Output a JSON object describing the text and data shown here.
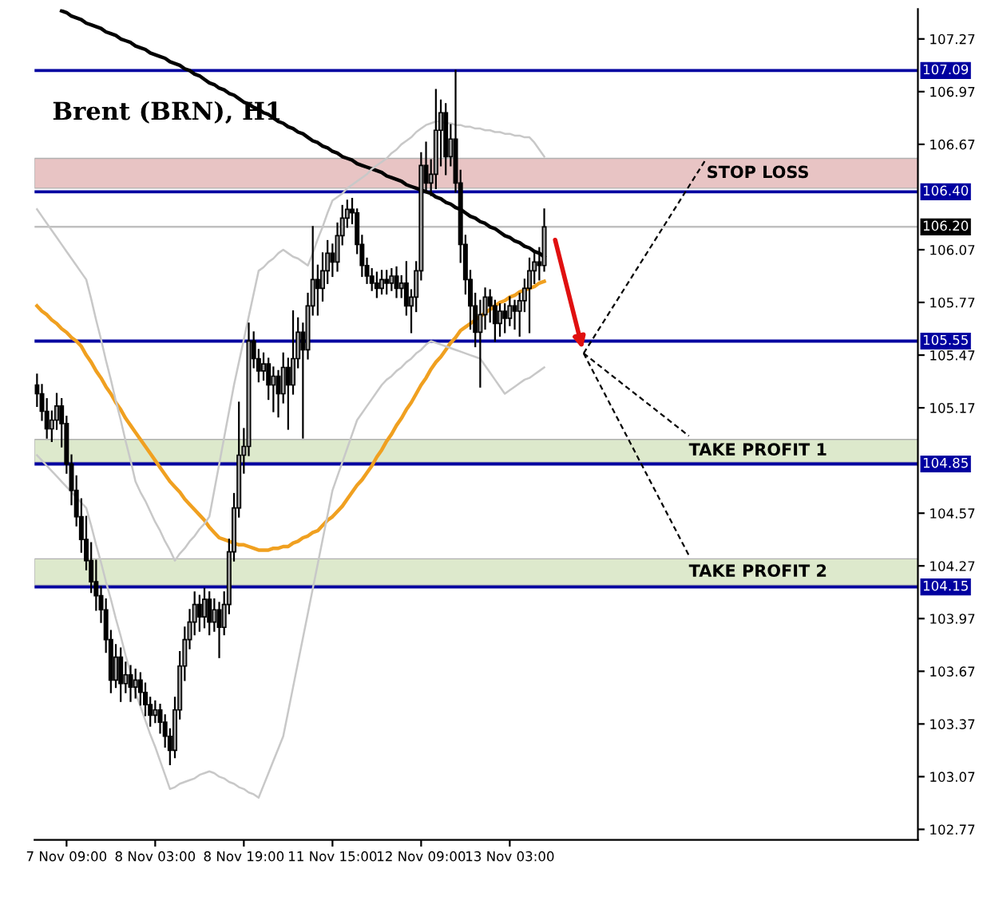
{
  "chart_data": {
    "type": "candlestick",
    "title": "Brent (BRN), H1",
    "categories": [
      null,
      null,
      null,
      null,
      null,
      null,
      "7 Nov 09:00",
      null,
      null,
      null,
      null,
      null,
      null,
      null,
      null,
      null,
      null,
      null,
      null,
      null,
      null,
      null,
      null,
      null,
      "8 Nov 03:00",
      null,
      null,
      null,
      null,
      null,
      null,
      null,
      null,
      null,
      null,
      null,
      null,
      null,
      null,
      null,
      null,
      null,
      "8 Nov 19:00",
      null,
      null,
      null,
      null,
      null,
      null,
      null,
      null,
      null,
      null,
      null,
      null,
      null,
      null,
      null,
      null,
      null,
      "11 Nov 15:00",
      null,
      null,
      null,
      null,
      null,
      null,
      null,
      null,
      null,
      null,
      null,
      null,
      null,
      null,
      null,
      null,
      null,
      "12 Nov 09:00",
      null,
      null,
      null,
      null,
      null,
      null,
      null,
      null,
      null,
      null,
      null,
      null,
      null,
      null,
      null,
      null,
      null,
      "13 Nov 03:00",
      null,
      null,
      null,
      null,
      null,
      null,
      null
    ],
    "ohlc": [
      [
        105.3,
        105.36,
        105.18,
        105.25
      ],
      [
        105.25,
        105.3,
        105.1,
        105.15
      ],
      [
        105.15,
        105.22,
        105.0,
        105.05
      ],
      [
        105.05,
        105.15,
        104.98,
        105.1
      ],
      [
        105.1,
        105.25,
        105.05,
        105.18
      ],
      [
        105.18,
        105.22,
        104.95,
        105.08
      ],
      [
        105.08,
        105.12,
        104.8,
        104.85
      ],
      [
        104.85,
        104.9,
        104.62,
        104.7
      ],
      [
        104.7,
        104.78,
        104.5,
        104.55
      ],
      [
        104.55,
        104.65,
        104.35,
        104.42
      ],
      [
        104.42,
        104.55,
        104.25,
        104.3
      ],
      [
        104.3,
        104.4,
        104.12,
        104.18
      ],
      [
        104.18,
        104.3,
        104.02,
        104.1
      ],
      [
        104.1,
        104.15,
        103.95,
        104.02
      ],
      [
        104.02,
        104.08,
        103.78,
        103.85
      ],
      [
        103.85,
        103.9,
        103.55,
        103.62
      ],
      [
        103.62,
        103.82,
        103.58,
        103.75
      ],
      [
        103.75,
        103.8,
        103.5,
        103.6
      ],
      [
        103.6,
        103.72,
        103.55,
        103.65
      ],
      [
        103.65,
        103.7,
        103.5,
        103.58
      ],
      [
        103.58,
        103.68,
        103.52,
        103.62
      ],
      [
        103.62,
        103.66,
        103.48,
        103.55
      ],
      [
        103.55,
        103.6,
        103.42,
        103.48
      ],
      [
        103.48,
        103.52,
        103.36,
        103.42
      ],
      [
        103.42,
        103.5,
        103.38,
        103.45
      ],
      [
        103.45,
        103.48,
        103.32,
        103.38
      ],
      [
        103.38,
        103.42,
        103.24,
        103.3
      ],
      [
        103.3,
        103.34,
        103.14,
        103.22
      ],
      [
        103.22,
        103.52,
        103.18,
        103.45
      ],
      [
        103.45,
        103.78,
        103.4,
        103.7
      ],
      [
        103.7,
        103.92,
        103.62,
        103.85
      ],
      [
        103.85,
        104.02,
        103.8,
        103.95
      ],
      [
        103.95,
        104.12,
        103.88,
        104.05
      ],
      [
        104.05,
        104.1,
        103.9,
        103.98
      ],
      [
        103.98,
        104.14,
        103.92,
        104.08
      ],
      [
        104.08,
        104.12,
        103.88,
        103.95
      ],
      [
        103.95,
        104.08,
        103.9,
        104.02
      ],
      [
        104.02,
        104.06,
        103.75,
        103.92
      ],
      [
        103.92,
        104.12,
        103.88,
        104.05
      ],
      [
        104.05,
        104.42,
        104.0,
        104.35
      ],
      [
        104.35,
        104.68,
        104.3,
        104.6
      ],
      [
        104.6,
        105.2,
        104.55,
        104.9
      ],
      [
        104.9,
        105.05,
        104.8,
        104.95
      ],
      [
        104.95,
        105.65,
        104.9,
        105.55
      ],
      [
        105.55,
        105.6,
        105.4,
        105.45
      ],
      [
        105.45,
        105.5,
        105.32,
        105.38
      ],
      [
        105.38,
        105.48,
        105.33,
        105.42
      ],
      [
        105.42,
        105.45,
        105.22,
        105.3
      ],
      [
        105.3,
        105.4,
        105.15,
        105.35
      ],
      [
        105.35,
        105.38,
        105.12,
        105.25
      ],
      [
        105.25,
        105.48,
        105.2,
        105.4
      ],
      [
        105.4,
        105.45,
        105.05,
        105.3
      ],
      [
        105.3,
        105.72,
        105.25,
        105.45
      ],
      [
        105.45,
        105.68,
        105.4,
        105.6
      ],
      [
        105.6,
        105.65,
        105.0,
        105.5
      ],
      [
        105.5,
        105.82,
        105.45,
        105.75
      ],
      [
        105.75,
        106.2,
        105.7,
        105.9
      ],
      [
        105.9,
        105.98,
        105.7,
        105.85
      ],
      [
        105.85,
        106.05,
        105.78,
        105.95
      ],
      [
        105.95,
        106.12,
        105.88,
        106.05
      ],
      [
        106.05,
        106.1,
        105.92,
        106.0
      ],
      [
        106.0,
        106.22,
        105.95,
        106.15
      ],
      [
        106.15,
        106.32,
        106.1,
        106.25
      ],
      [
        106.25,
        106.35,
        106.2,
        106.3
      ],
      [
        106.3,
        106.36,
        106.22,
        106.28
      ],
      [
        106.28,
        106.3,
        106.05,
        106.1
      ],
      [
        106.1,
        106.15,
        105.92,
        105.98
      ],
      [
        105.98,
        106.02,
        105.88,
        105.92
      ],
      [
        105.92,
        105.96,
        105.84,
        105.88
      ],
      [
        105.88,
        105.94,
        105.8,
        105.85
      ],
      [
        105.85,
        105.95,
        105.82,
        105.9
      ],
      [
        105.9,
        105.95,
        105.82,
        105.88
      ],
      [
        105.88,
        105.96,
        105.84,
        105.92
      ],
      [
        105.92,
        105.97,
        105.8,
        105.85
      ],
      [
        105.85,
        105.92,
        105.8,
        105.88
      ],
      [
        105.88,
        106.0,
        105.7,
        105.75
      ],
      [
        105.75,
        105.84,
        105.6,
        105.8
      ],
      [
        105.8,
        106.0,
        105.72,
        105.95
      ],
      [
        105.95,
        106.62,
        105.9,
        106.55
      ],
      [
        106.55,
        106.68,
        106.4,
        106.45
      ],
      [
        106.45,
        106.58,
        106.38,
        106.5
      ],
      [
        106.5,
        106.98,
        106.42,
        106.75
      ],
      [
        106.75,
        106.92,
        106.55,
        106.85
      ],
      [
        106.85,
        106.9,
        106.5,
        106.6
      ],
      [
        106.6,
        106.78,
        106.55,
        106.7
      ],
      [
        106.7,
        107.09,
        106.4,
        106.45
      ],
      [
        106.45,
        106.52,
        106.0,
        106.1
      ],
      [
        106.1,
        106.15,
        105.82,
        105.9
      ],
      [
        105.9,
        105.95,
        105.62,
        105.75
      ],
      [
        105.75,
        105.82,
        105.52,
        105.6
      ],
      [
        105.6,
        105.78,
        105.29,
        105.7
      ],
      [
        105.7,
        105.85,
        105.62,
        105.8
      ],
      [
        105.8,
        105.84,
        105.66,
        105.75
      ],
      [
        105.75,
        105.78,
        105.55,
        105.65
      ],
      [
        105.65,
        105.76,
        105.58,
        105.72
      ],
      [
        105.72,
        105.76,
        105.6,
        105.68
      ],
      [
        105.68,
        105.8,
        105.64,
        105.75
      ],
      [
        105.75,
        105.78,
        105.62,
        105.72
      ],
      [
        105.72,
        105.82,
        105.58,
        105.78
      ],
      [
        105.78,
        105.9,
        105.72,
        105.85
      ],
      [
        105.85,
        106.02,
        105.6,
        105.95
      ],
      [
        105.95,
        106.05,
        105.88,
        106.0
      ],
      [
        106.0,
        106.08,
        105.9,
        105.98
      ],
      [
        105.98,
        106.3,
        105.95,
        106.2
      ]
    ],
    "series": [
      {
        "type": "line",
        "color": "#000000",
        "values": [
          null,
          null,
          null,
          null,
          null,
          107.43,
          107.42,
          107.4,
          107.39,
          107.38,
          107.36,
          107.35,
          107.34,
          107.33,
          107.31,
          107.3,
          107.29,
          107.27,
          107.26,
          107.25,
          107.23,
          107.22,
          107.21,
          107.19,
          107.18,
          107.17,
          107.16,
          107.14,
          107.13,
          107.12,
          107.1,
          107.09,
          107.07,
          107.06,
          107.04,
          107.02,
          107.01,
          106.99,
          106.98,
          106.96,
          106.95,
          106.93,
          106.91,
          106.9,
          106.88,
          106.87,
          106.85,
          106.84,
          106.82,
          106.8,
          106.79,
          106.77,
          106.76,
          106.74,
          106.73,
          106.71,
          106.69,
          106.68,
          106.66,
          106.65,
          106.63,
          106.62,
          106.6,
          106.59,
          106.58,
          106.56,
          106.55,
          106.54,
          106.53,
          106.52,
          106.51,
          106.49,
          106.48,
          106.47,
          106.46,
          106.44,
          106.43,
          106.42,
          106.41,
          106.4,
          106.39,
          106.37,
          106.36,
          106.34,
          106.33,
          106.31,
          106.3,
          106.28,
          106.26,
          106.25,
          106.23,
          106.22,
          106.2,
          106.19,
          106.17,
          106.15,
          106.14,
          106.12,
          106.11,
          106.09,
          106.08,
          106.06,
          106.05,
          106.03
        ]
      },
      {
        "type": "line",
        "color": "#f0a020",
        "values": [
          105.75,
          105.72,
          105.7,
          105.67,
          105.65,
          105.62,
          105.6,
          105.57,
          105.55,
          105.52,
          105.47,
          105.43,
          105.38,
          105.34,
          105.29,
          105.25,
          105.2,
          105.16,
          105.11,
          105.07,
          105.03,
          104.99,
          104.95,
          104.91,
          104.87,
          104.83,
          104.79,
          104.75,
          104.72,
          104.69,
          104.65,
          104.62,
          104.59,
          104.56,
          104.53,
          104.49,
          104.46,
          104.43,
          104.42,
          104.41,
          104.4,
          104.39,
          104.39,
          104.38,
          104.37,
          104.36,
          104.36,
          104.36,
          104.37,
          104.37,
          104.38,
          104.38,
          104.4,
          104.41,
          104.43,
          104.44,
          104.46,
          104.47,
          104.5,
          104.53,
          104.55,
          104.58,
          104.61,
          104.65,
          104.69,
          104.73,
          104.76,
          104.8,
          104.84,
          104.89,
          104.93,
          104.98,
          105.02,
          105.07,
          105.11,
          105.16,
          105.2,
          105.25,
          105.3,
          105.34,
          105.39,
          105.43,
          105.46,
          105.5,
          105.54,
          105.57,
          105.61,
          105.63,
          105.65,
          105.67,
          105.69,
          105.71,
          105.73,
          105.75,
          105.77,
          105.78,
          105.8,
          105.81,
          105.83,
          105.84,
          105.85,
          105.86,
          105.88,
          105.89
        ]
      },
      {
        "type": "line",
        "color": "#c8c8c8",
        "values": [
          106.3,
          106.26,
          106.22,
          106.18,
          106.14,
          106.1,
          106.06,
          106.02,
          105.98,
          105.94,
          105.9,
          105.79,
          105.67,
          105.56,
          105.44,
          105.33,
          105.21,
          105.1,
          104.98,
          104.87,
          104.75,
          104.69,
          104.64,
          104.58,
          104.52,
          104.47,
          104.41,
          104.36,
          104.3,
          104.34,
          104.37,
          104.41,
          104.44,
          104.48,
          104.51,
          104.55,
          104.7,
          104.85,
          105.0,
          105.15,
          105.3,
          105.43,
          105.56,
          105.69,
          105.82,
          105.95,
          105.97,
          106.0,
          106.02,
          106.05,
          106.07,
          106.05,
          106.03,
          106.02,
          106.0,
          105.98,
          106.05,
          106.13,
          106.2,
          106.28,
          106.35,
          106.37,
          106.39,
          106.42,
          106.44,
          106.46,
          106.48,
          106.5,
          106.53,
          106.55,
          106.57,
          106.59,
          106.62,
          106.64,
          106.67,
          106.69,
          106.71,
          106.74,
          106.76,
          106.78,
          106.79,
          106.8,
          106.8,
          106.79,
          106.79,
          106.78,
          106.78,
          106.77,
          106.77,
          106.76,
          106.76,
          106.75,
          106.75,
          106.74,
          106.74,
          106.73,
          106.73,
          106.72,
          106.72,
          106.71,
          106.71,
          106.68,
          106.64,
          106.6
        ]
      },
      {
        "type": "line",
        "color": "#c8c8c8",
        "values": [
          104.9,
          104.87,
          104.84,
          104.81,
          104.78,
          104.75,
          104.72,
          104.69,
          104.66,
          104.63,
          104.6,
          104.5,
          104.39,
          104.29,
          104.18,
          104.08,
          103.97,
          103.87,
          103.76,
          103.66,
          103.55,
          103.47,
          103.39,
          103.31,
          103.24,
          103.16,
          103.08,
          103.0,
          103.01,
          103.03,
          103.04,
          103.05,
          103.06,
          103.08,
          103.09,
          103.1,
          103.09,
          103.07,
          103.06,
          103.04,
          103.03,
          103.01,
          103.0,
          102.98,
          102.97,
          102.95,
          103.02,
          103.09,
          103.16,
          103.23,
          103.3,
          103.44,
          103.58,
          103.72,
          103.86,
          104.0,
          104.14,
          104.28,
          104.42,
          104.56,
          104.7,
          104.78,
          104.86,
          104.94,
          105.02,
          105.1,
          105.14,
          105.18,
          105.22,
          105.26,
          105.3,
          105.33,
          105.35,
          105.38,
          105.4,
          105.43,
          105.45,
          105.48,
          105.5,
          105.53,
          105.55,
          105.54,
          105.53,
          105.52,
          105.51,
          105.5,
          105.49,
          105.48,
          105.47,
          105.46,
          105.45,
          105.41,
          105.37,
          105.33,
          105.29,
          105.25,
          105.27,
          105.29,
          105.31,
          105.33,
          105.34,
          105.36,
          105.38,
          105.4
        ]
      }
    ],
    "ylim": [
      102.71,
      107.44
    ],
    "yticks": [
      107.27,
      106.97,
      106.67,
      106.07,
      105.77,
      105.47,
      105.17,
      104.57,
      104.27,
      103.97,
      103.67,
      103.37,
      103.07,
      102.77
    ],
    "ref_lines": [
      {
        "axis": "y",
        "value": 107.09,
        "label": "107.09",
        "color": "#0000a0"
      },
      {
        "axis": "y",
        "value": 106.4,
        "label": "106.40",
        "color": "#0000a0"
      },
      {
        "axis": "y",
        "value": 106.2,
        "label": "106.20",
        "color": "#c0c0c0"
      },
      {
        "axis": "y",
        "value": 105.55,
        "label": "105.55",
        "color": "#0000a0"
      },
      {
        "axis": "y",
        "value": 104.85,
        "label": "104.85",
        "color": "#0000a0"
      },
      {
        "axis": "y",
        "value": 104.15,
        "label": "104.15",
        "color": "#0000a0"
      }
    ],
    "bands": [
      {
        "axis": "y",
        "from": 106.42,
        "to": 106.59,
        "label": "STOP LOSS",
        "color": "#e8c4c4"
      },
      {
        "axis": "y",
        "from": 104.86,
        "to": 104.99,
        "label": "TAKE PROFIT 1",
        "color": "#dde9cc"
      },
      {
        "axis": "y",
        "from": 104.16,
        "to": 104.31,
        "label": "TAKE PROFIT 2",
        "color": "#dde9cc"
      }
    ],
    "grid": false,
    "legend": false
  }
}
